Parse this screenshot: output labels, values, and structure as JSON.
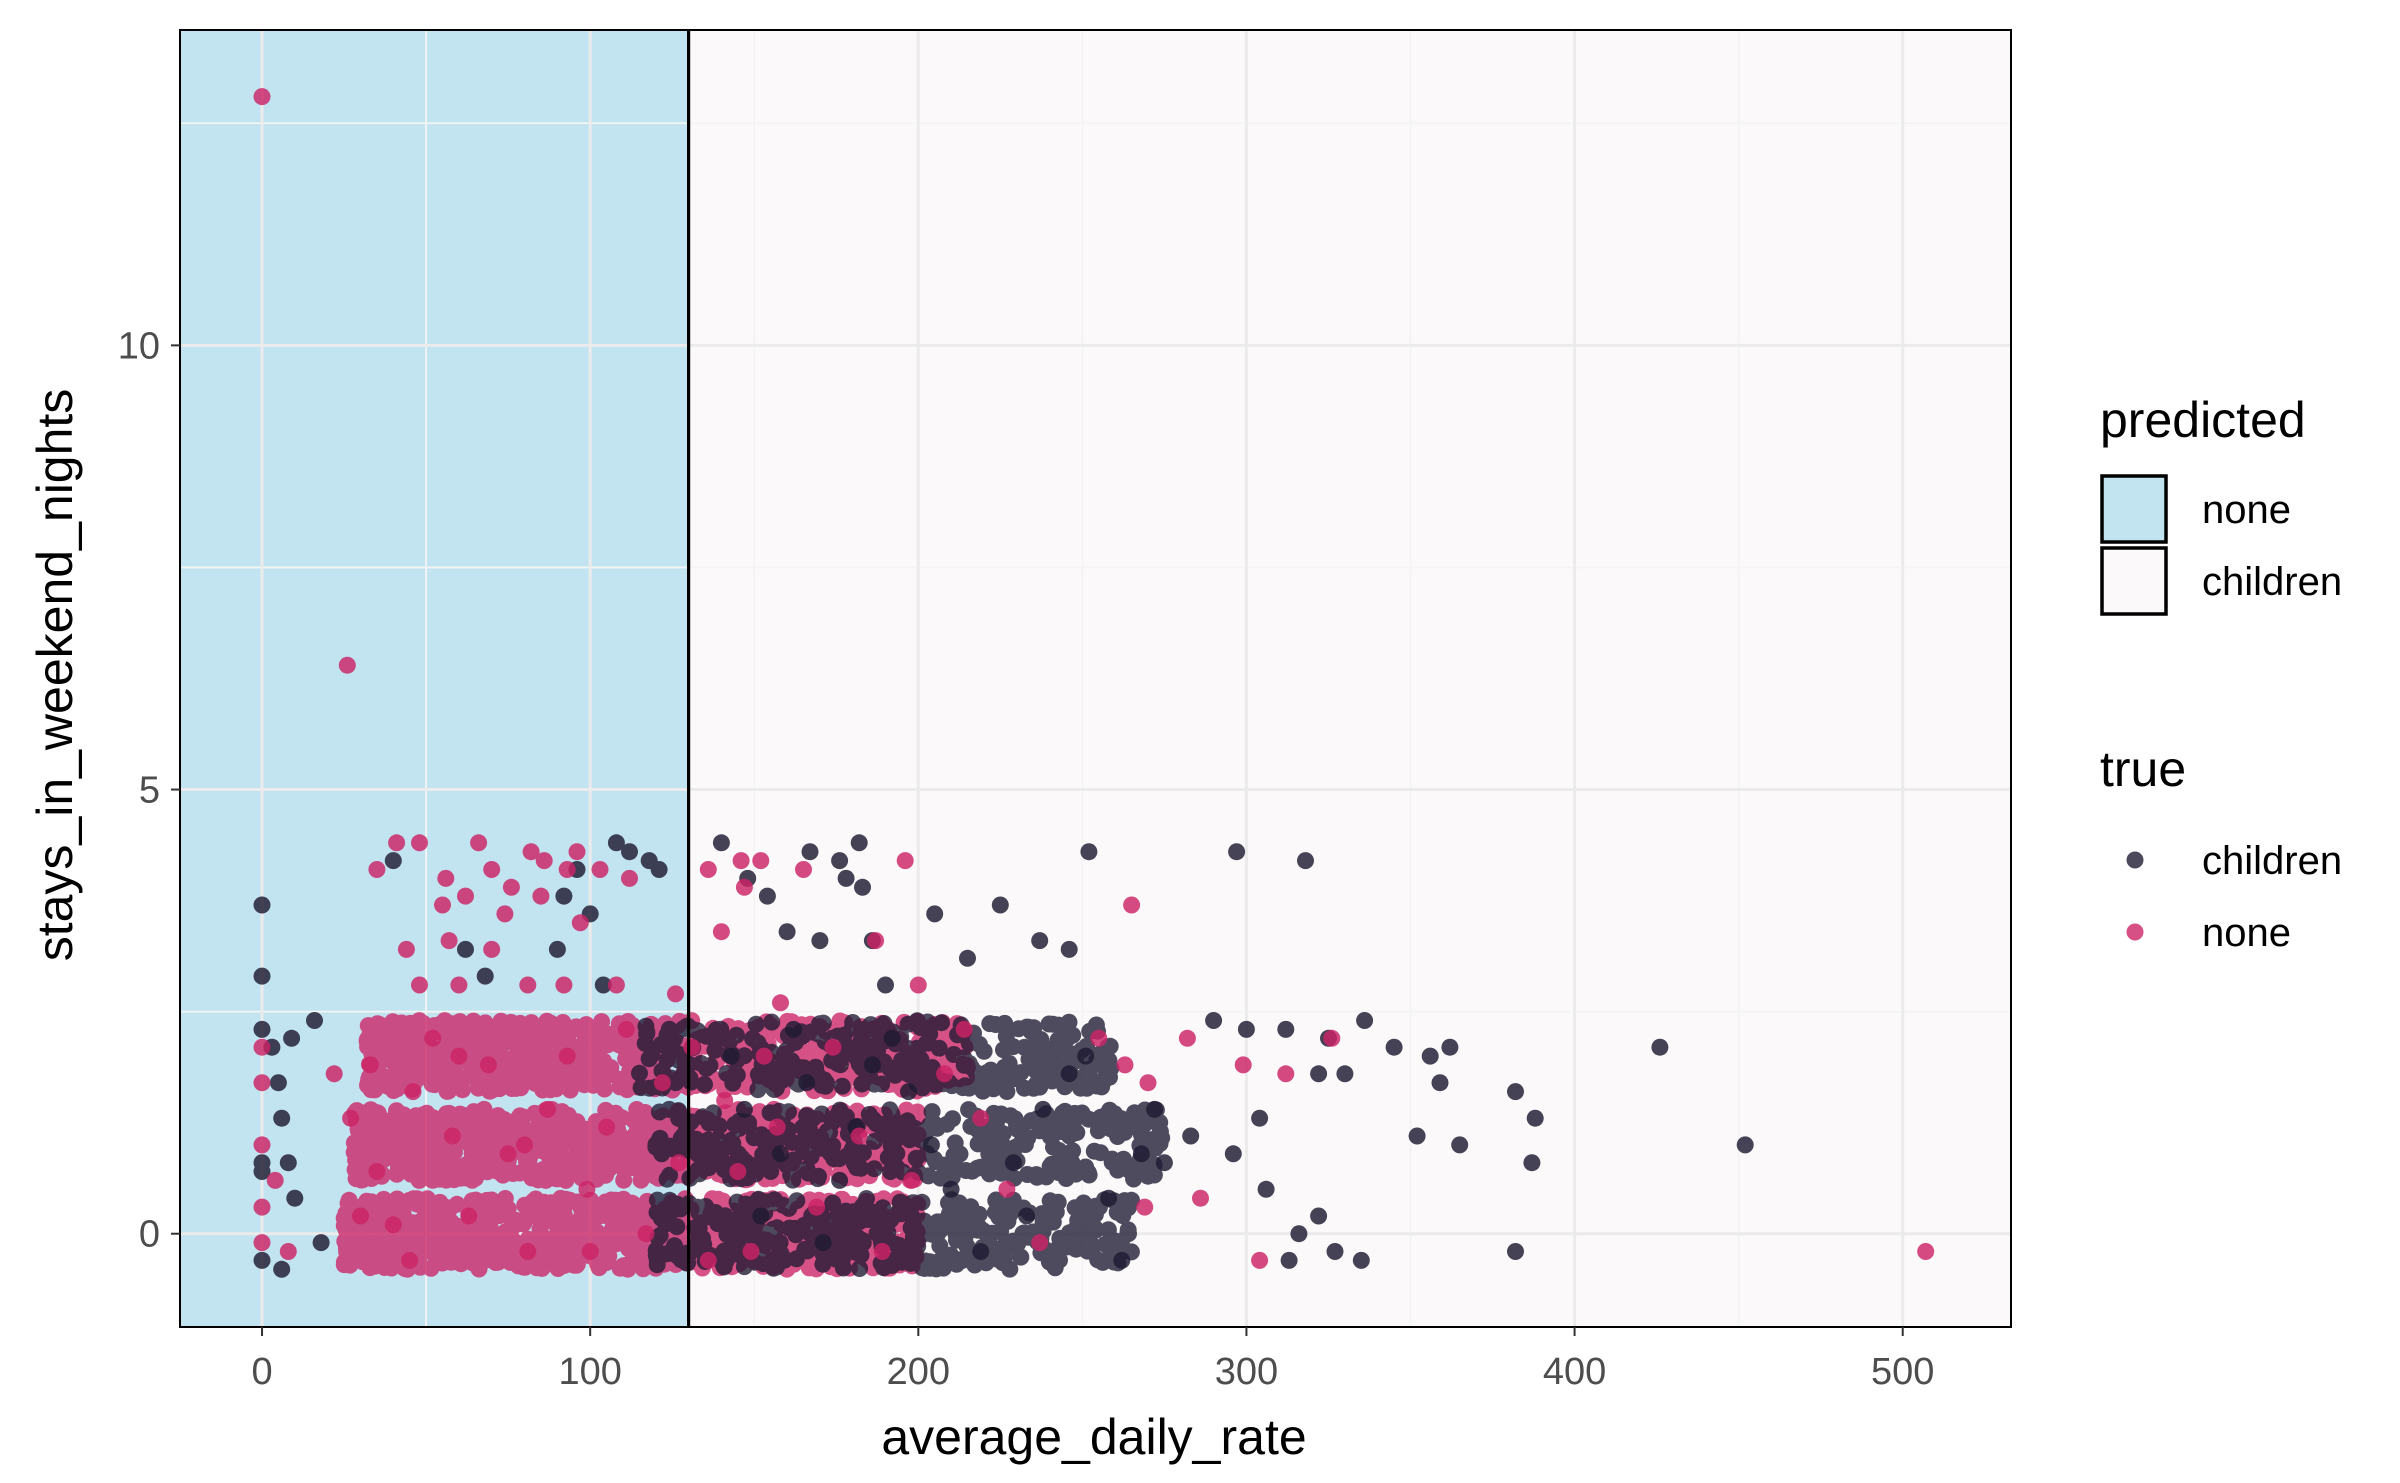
{
  "chart_data": {
    "type": "scatter",
    "title": "",
    "xlabel": "average_daily_rate",
    "ylabel": "stays_in_weekend_nights",
    "xlim": [
      -25,
      533
    ],
    "ylim": [
      -1.05,
      13.55
    ],
    "x_ticks": [
      0,
      100,
      200,
      300,
      400,
      500
    ],
    "y_ticks": [
      0,
      5,
      10
    ],
    "x_tick_labels": [
      "0",
      "100",
      "200",
      "300",
      "400",
      "500"
    ],
    "y_tick_labels": [
      "0",
      "5",
      "10"
    ],
    "grid": true,
    "legend_position": "right",
    "colors": {
      "children": "#1f1b33",
      "none": "#cc2366",
      "region_none": "#c2e3f0",
      "region_children": "#fbf9fa",
      "panel_border": "#000000"
    },
    "decision_regions": {
      "variable": "average_daily_rate",
      "threshold": 130,
      "below": "none",
      "above": "children"
    },
    "legends": [
      {
        "title": "predicted",
        "entries": [
          "none",
          "children"
        ]
      },
      {
        "title": "true",
        "entries": [
          "children",
          "none"
        ]
      }
    ],
    "series": [
      {
        "name": "children",
        "points": [
          [
            0,
            3.7
          ],
          [
            0,
            2.9
          ],
          [
            0,
            2.3
          ],
          [
            0,
            0.8
          ],
          [
            0,
            0.7
          ],
          [
            0,
            -0.3
          ],
          [
            3,
            2.1
          ],
          [
            5,
            1.7
          ],
          [
            6,
            1.3
          ],
          [
            6,
            -0.4
          ],
          [
            9,
            2.2
          ],
          [
            8,
            0.8
          ],
          [
            10,
            0.4
          ],
          [
            16,
            2.4
          ],
          [
            18,
            -0.1
          ],
          [
            40,
            4.2
          ],
          [
            62,
            3.2
          ],
          [
            68,
            2.9
          ],
          [
            90,
            3.2
          ],
          [
            92,
            3.8
          ],
          [
            96,
            4.1
          ],
          [
            100,
            3.6
          ],
          [
            104,
            2.8
          ],
          [
            108,
            4.4
          ],
          [
            112,
            4.3
          ],
          [
            118,
            4.2
          ],
          [
            121,
            4.1
          ],
          [
            140,
            4.4
          ],
          [
            148,
            4.0
          ],
          [
            154,
            3.8
          ],
          [
            167,
            4.3
          ],
          [
            176,
            4.2
          ],
          [
            182,
            4.4
          ],
          [
            178,
            4.0
          ],
          [
            183,
            3.9
          ],
          [
            160,
            3.4
          ],
          [
            170,
            3.3
          ],
          [
            186,
            3.3
          ],
          [
            190,
            2.8
          ],
          [
            205,
            3.6
          ],
          [
            215,
            3.1
          ],
          [
            225,
            3.7
          ],
          [
            237,
            3.3
          ],
          [
            246,
            3.2
          ],
          [
            252,
            4.3
          ],
          [
            297,
            4.3
          ],
          [
            318,
            4.2
          ],
          [
            290,
            2.4
          ],
          [
            300,
            2.3
          ],
          [
            312,
            2.3
          ],
          [
            325,
            2.2
          ],
          [
            336,
            2.4
          ],
          [
            345,
            2.1
          ],
          [
            356,
            2.0
          ],
          [
            362,
            2.1
          ],
          [
            359,
            1.7
          ],
          [
            322,
            1.8
          ],
          [
            330,
            1.8
          ],
          [
            382,
            1.6
          ],
          [
            388,
            1.3
          ],
          [
            352,
            1.1
          ],
          [
            365,
            1.0
          ],
          [
            387,
            0.8
          ],
          [
            426,
            2.1
          ],
          [
            452,
            1.0
          ],
          [
            382,
            -0.2
          ],
          [
            335,
            -0.3
          ],
          [
            327,
            -0.2
          ],
          [
            313,
            -0.3
          ],
          [
            316,
            0.0
          ],
          [
            322,
            0.2
          ],
          [
            306,
            0.5
          ],
          [
            296,
            0.9
          ],
          [
            304,
            1.3
          ],
          [
            283,
            1.1
          ],
          [
            275,
            0.8
          ],
          [
            262,
            -0.3
          ],
          [
            258,
            0.4
          ],
          [
            268,
            0.9
          ],
          [
            272,
            1.4
          ],
          [
            246,
            1.8
          ],
          [
            251,
            2.0
          ],
          [
            238,
            1.4
          ],
          [
            229,
            0.8
          ],
          [
            233,
            0.2
          ],
          [
            219,
            -0.2
          ],
          [
            210,
            0.5
          ],
          [
            204,
            1.0
          ],
          [
            197,
            1.6
          ],
          [
            192,
            2.2
          ],
          [
            186,
            1.9
          ],
          [
            181,
            1.2
          ],
          [
            176,
            0.6
          ],
          [
            171,
            -0.1
          ],
          [
            166,
            1.7
          ],
          [
            162,
            2.3
          ],
          [
            158,
            0.9
          ],
          [
            152,
            0.2
          ],
          [
            147,
            1.4
          ],
          [
            143,
            2.0
          ]
        ]
      },
      {
        "name": "none",
        "points": [
          [
            0,
            12.8
          ],
          [
            26,
            6.4
          ],
          [
            35,
            4.1
          ],
          [
            41,
            4.4
          ],
          [
            48,
            4.4
          ],
          [
            56,
            4.0
          ],
          [
            66,
            4.4
          ],
          [
            70,
            4.1
          ],
          [
            76,
            3.9
          ],
          [
            82,
            4.3
          ],
          [
            86,
            4.2
          ],
          [
            93,
            4.1
          ],
          [
            96,
            4.3
          ],
          [
            103,
            4.1
          ],
          [
            112,
            4.0
          ],
          [
            55,
            3.7
          ],
          [
            62,
            3.8
          ],
          [
            74,
            3.6
          ],
          [
            85,
            3.8
          ],
          [
            97,
            3.5
          ],
          [
            44,
            3.2
          ],
          [
            57,
            3.3
          ],
          [
            70,
            3.2
          ],
          [
            48,
            2.8
          ],
          [
            60,
            2.8
          ],
          [
            81,
            2.8
          ],
          [
            92,
            2.8
          ],
          [
            108,
            2.8
          ],
          [
            126,
            2.7
          ],
          [
            136,
            4.1
          ],
          [
            146,
            4.2
          ],
          [
            152,
            4.2
          ],
          [
            140,
            3.4
          ],
          [
            147,
            3.9
          ],
          [
            165,
            4.1
          ],
          [
            196,
            4.2
          ],
          [
            187,
            3.3
          ],
          [
            200,
            2.8
          ],
          [
            265,
            3.7
          ],
          [
            158,
            2.6
          ],
          [
            255,
            2.2
          ],
          [
            263,
            1.9
          ],
          [
            270,
            1.7
          ],
          [
            282,
            2.2
          ],
          [
            299,
            1.9
          ],
          [
            312,
            1.8
          ],
          [
            326,
            2.2
          ],
          [
            286,
            0.4
          ],
          [
            304,
            -0.3
          ],
          [
            269,
            0.3
          ],
          [
            237,
            -0.1
          ],
          [
            227,
            0.5
          ],
          [
            219,
            1.3
          ],
          [
            214,
            2.3
          ],
          [
            208,
            1.8
          ],
          [
            198,
            0.6
          ],
          [
            189,
            -0.2
          ],
          [
            182,
            1.1
          ],
          [
            174,
            2.1
          ],
          [
            169,
            0.3
          ],
          [
            157,
            1.2
          ],
          [
            153,
            2.0
          ],
          [
            149,
            -0.2
          ],
          [
            145,
            0.7
          ],
          [
            141,
            1.5
          ],
          [
            507,
            -0.2
          ],
          [
            0,
            2.1
          ],
          [
            0,
            1.7
          ],
          [
            0,
            1.0
          ],
          [
            0,
            0.3
          ],
          [
            0,
            -0.1
          ],
          [
            4,
            0.6
          ],
          [
            8,
            -0.2
          ],
          [
            22,
            1.8
          ],
          [
            27,
            1.3
          ],
          [
            33,
            1.9
          ],
          [
            35,
            0.7
          ],
          [
            40,
            0.1
          ],
          [
            46,
            1.6
          ],
          [
            52,
            2.2
          ],
          [
            58,
            1.1
          ],
          [
            63,
            0.2
          ],
          [
            69,
            1.9
          ],
          [
            75,
            0.9
          ],
          [
            81,
            -0.2
          ],
          [
            87,
            1.4
          ],
          [
            93,
            2.0
          ],
          [
            99,
            0.5
          ],
          [
            105,
            1.2
          ],
          [
            111,
            2.3
          ],
          [
            117,
            0.0
          ],
          [
            122,
            1.7
          ],
          [
            127,
            0.8
          ],
          [
            131,
            2.1
          ],
          [
            136,
            -0.3
          ],
          [
            30,
            0.2
          ],
          [
            45,
            -0.3
          ],
          [
            60,
            2.0
          ],
          [
            80,
            1.0
          ],
          [
            100,
            -0.2
          ]
        ]
      }
    ],
    "bands": [
      {
        "series": "none",
        "center": 0,
        "x_range": [
          25,
          200
        ],
        "count": 900,
        "weight": "dense"
      },
      {
        "series": "none",
        "center": 1,
        "x_range": [
          28,
          200
        ],
        "count": 800,
        "weight": "dense"
      },
      {
        "series": "none",
        "center": 2,
        "x_range": [
          32,
          215
        ],
        "count": 800,
        "weight": "dense"
      },
      {
        "series": "children",
        "center": 0,
        "x_range": [
          120,
          265
        ],
        "count": 380,
        "weight": "sparse"
      },
      {
        "series": "children",
        "center": 1,
        "x_range": [
          120,
          275
        ],
        "count": 330,
        "weight": "sparse"
      },
      {
        "series": "children",
        "center": 2,
        "x_range": [
          115,
          260
        ],
        "count": 300,
        "weight": "sparse"
      }
    ]
  }
}
